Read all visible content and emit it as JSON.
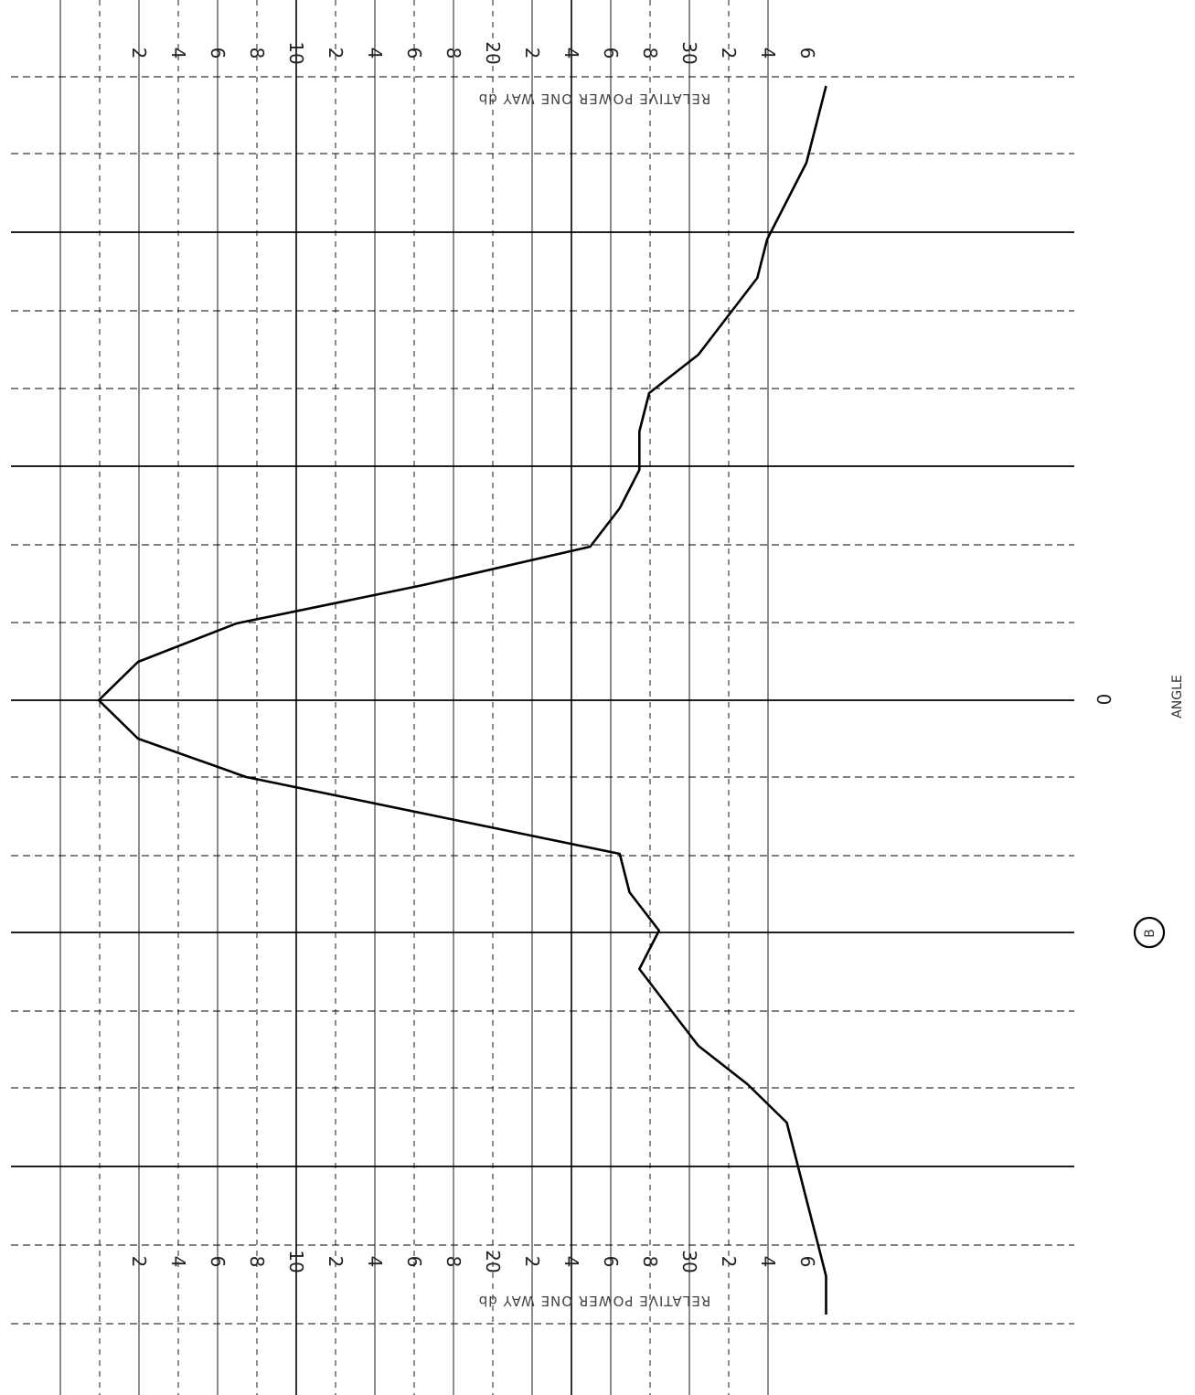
{
  "chart_data": {
    "type": "line",
    "title": "",
    "ylabel": "RELATIVE POWER ONE WAY db",
    "xlabel": "ANGLE",
    "x_zero_label": "0",
    "ylim": [
      -36,
      0
    ],
    "grid": true,
    "orientation": "rotated 90° clockwise, top and bottom power scales printed upside-down",
    "tick_labels_top": [
      "2",
      "4",
      "6",
      "8",
      "10",
      "2",
      "4",
      "6",
      "8",
      "20",
      "2",
      "4",
      "6",
      "8",
      "30",
      "2",
      "4",
      "6"
    ],
    "tick_labels_bottom": [
      "2",
      "4",
      "6",
      "8",
      "10",
      "2",
      "4",
      "6",
      "8",
      "20",
      "2",
      "4",
      "6",
      "8",
      "30",
      "2",
      "4",
      "6"
    ],
    "highlighted_marker_label": "B",
    "series": [
      {
        "x": [
          -8.0,
          -7.5,
          -7.0,
          -6.5,
          -6.0,
          -5.5,
          -5.0,
          -4.5,
          -4.0,
          -3.5,
          -3.0,
          -2.5,
          -2.0,
          -1.5,
          -1.0,
          -0.5,
          0.0,
          0.5,
          1.0,
          1.5,
          2.0,
          2.5,
          3.0,
          3.5,
          4.0,
          4.5,
          5.0,
          5.5,
          6.0,
          6.5,
          7.0,
          7.5,
          8.0
        ],
        "y": [
          -37.0,
          -36.5,
          -36.0,
          -35.0,
          -34.0,
          -33.5,
          -32.0,
          -30.5,
          -28.0,
          -27.5,
          -27.5,
          -26.5,
          -25.0,
          -16.5,
          -7.0,
          -2.0,
          0.0,
          -2.0,
          -7.5,
          -17.0,
          -26.5,
          -27.0,
          -28.5,
          -27.5,
          -29.0,
          -30.5,
          -33.0,
          -35.0,
          -35.5,
          -36.0,
          -36.5,
          -37.0,
          -37.0
        ]
      }
    ]
  }
}
